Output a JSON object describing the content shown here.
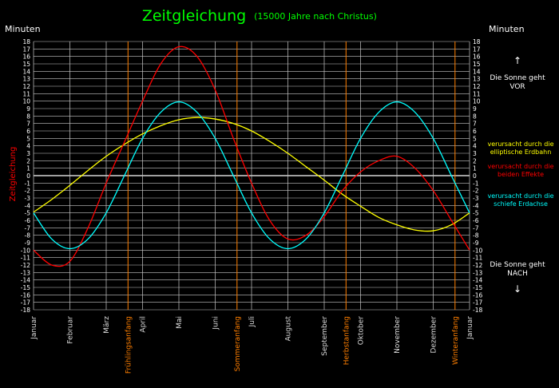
{
  "chart_data": {
    "type": "line",
    "title": "Zeitgleichung",
    "subtitle": "(15000 Jahre nach Christus)",
    "ylabel_left": "Minuten",
    "ylabel_right": "Minuten",
    "side_label": "Zeitgleichung",
    "ylim": [
      -18,
      18
    ],
    "yticks": [
      18,
      17,
      16,
      15,
      14,
      13,
      12,
      11,
      10,
      9,
      8,
      7,
      6,
      5,
      4,
      3,
      2,
      1,
      0,
      -1,
      -2,
      -3,
      -4,
      -5,
      -6,
      -7,
      -8,
      -9,
      -10,
      -11,
      -12,
      -13,
      -14,
      -15,
      -16,
      -17,
      -18
    ],
    "xlim": [
      0,
      12
    ],
    "grid": true,
    "months": [
      {
        "label": "Januar",
        "x": 0
      },
      {
        "label": "Februar",
        "x": 1
      },
      {
        "label": "März",
        "x": 2
      },
      {
        "label": "April",
        "x": 3
      },
      {
        "label": "Mai",
        "x": 4
      },
      {
        "label": "Juni",
        "x": 5
      },
      {
        "label": "Juli",
        "x": 6
      },
      {
        "label": "August",
        "x": 7
      },
      {
        "label": "September",
        "x": 8
      },
      {
        "label": "Oktober",
        "x": 9
      },
      {
        "label": "November",
        "x": 10
      },
      {
        "label": "Dezember",
        "x": 11
      },
      {
        "label": "Januar",
        "x": 12
      }
    ],
    "seasons": [
      {
        "label": "Frühlingsanfang",
        "x": 2.6
      },
      {
        "label": "Sommeranfang",
        "x": 5.6
      },
      {
        "label": "Herbstanfang",
        "x": 8.6
      },
      {
        "label": "Winteranfang",
        "x": 11.6
      }
    ],
    "colors": {
      "season": "#ff7f00",
      "yellow": "#ffff00",
      "red": "#ff0000",
      "cyan": "#00ffff",
      "title": "#00ff00",
      "grid": "#c8c8c8"
    },
    "annotations": {
      "vor": [
        "Die Sonne geht",
        "VOR"
      ],
      "nach": [
        "Die Sonne geht",
        "NACH"
      ],
      "legend_yellow": [
        "verursacht durch die",
        "elliptische Erdbahn"
      ],
      "legend_red": [
        "verursacht durch die",
        "beiden Effekte"
      ],
      "legend_cyan": [
        "verursacht durch die",
        "schiefe Erdachse"
      ]
    },
    "series": [
      {
        "color": "#ffff00",
        "x": [
          0,
          0.5,
          1,
          1.5,
          2,
          2.5,
          3,
          3.5,
          4,
          4.5,
          5,
          5.5,
          6,
          6.5,
          7,
          7.5,
          8,
          8.5,
          9,
          9.5,
          10,
          10.5,
          11,
          11.5,
          12
        ],
        "y": [
          -4.9,
          -3.2,
          -1.3,
          0.7,
          2.6,
          4.2,
          5.6,
          6.7,
          7.5,
          7.8,
          7.6,
          7.0,
          6.0,
          4.6,
          3.0,
          1.2,
          -0.6,
          -2.5,
          -4.1,
          -5.6,
          -6.6,
          -7.3,
          -7.4,
          -6.6,
          -5.0
        ]
      },
      {
        "color": "#ff0000",
        "x": [
          0,
          0.5,
          1,
          1.5,
          2,
          2.5,
          3,
          3.5,
          4,
          4.5,
          5,
          5.5,
          6,
          6.5,
          7,
          7.5,
          8,
          8.5,
          9,
          9.5,
          10,
          10.5,
          11,
          11.5,
          12
        ],
        "y": [
          -10,
          -12,
          -11.5,
          -7,
          -1,
          4.5,
          10,
          15,
          17.3,
          16,
          11.5,
          5,
          -1,
          -6,
          -8.5,
          -8,
          -5.5,
          -2,
          0.5,
          2,
          2.6,
          1,
          -2,
          -6,
          -10
        ]
      },
      {
        "color": "#00ffff",
        "x": [
          0,
          0.5,
          1,
          1.5,
          2,
          2.5,
          3,
          3.5,
          4,
          4.5,
          5,
          5.5,
          6,
          6.5,
          7,
          7.5,
          8,
          8.5,
          9,
          9.5,
          10,
          10.5,
          11,
          11.5,
          12
        ],
        "y": [
          -5,
          -8.5,
          -9.8,
          -8.5,
          -5,
          0,
          5,
          8.5,
          9.9,
          8.5,
          5,
          0,
          -5,
          -8.5,
          -9.8,
          -8.5,
          -5,
          0,
          5,
          8.5,
          9.9,
          8.5,
          5,
          0,
          -5
        ]
      }
    ]
  }
}
